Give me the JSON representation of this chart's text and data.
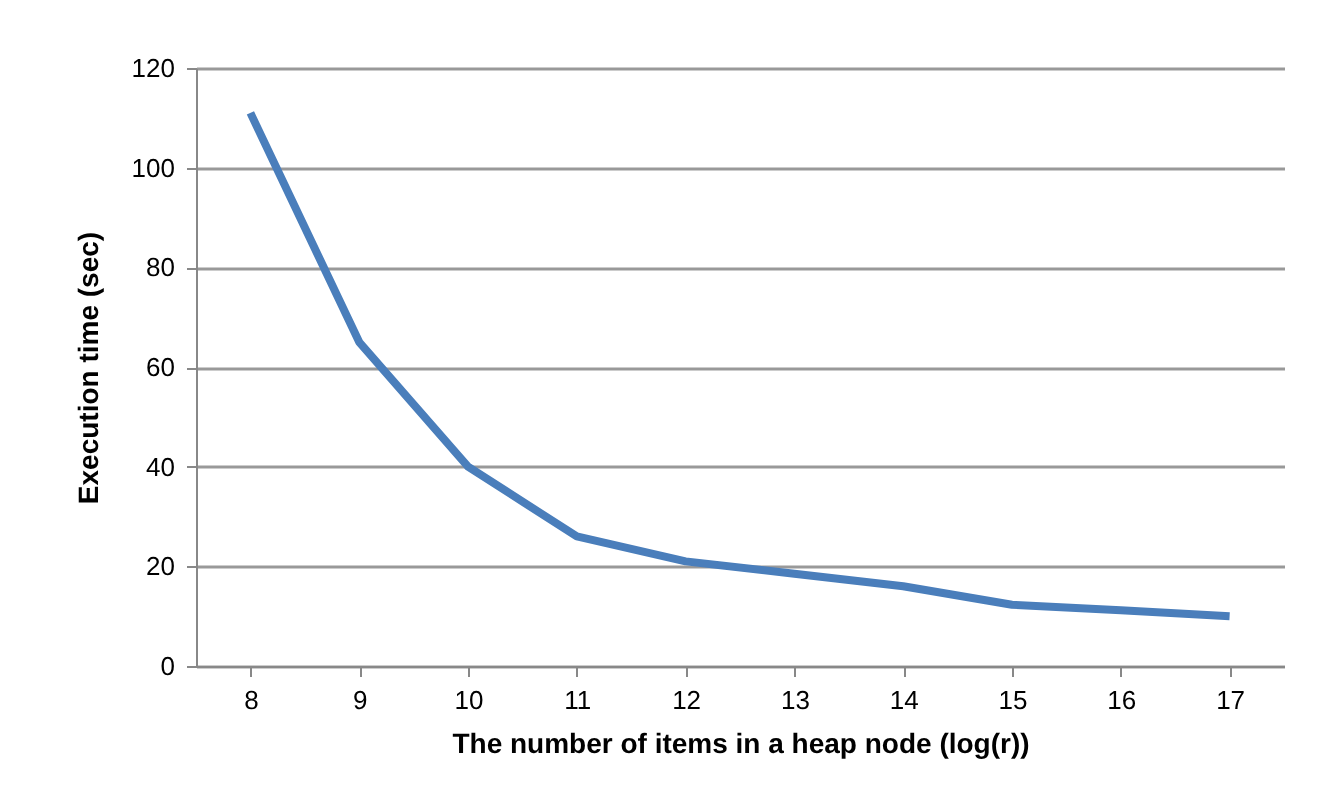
{
  "chart_data": {
    "type": "line",
    "xlabel": "The number of items in a heap node (log(r))",
    "ylabel": "Execution time (sec)",
    "categories": [
      "8",
      "9",
      "10",
      "11",
      "12",
      "13",
      "14",
      "15",
      "16",
      "17"
    ],
    "series": [
      {
        "color": "#4a7ebb",
        "values": [
          111,
          65,
          40,
          26,
          21,
          18.5,
          16,
          12.3,
          11.2,
          10
        ]
      }
    ],
    "ylim": [
      0,
      120
    ],
    "yticks": [
      0,
      20,
      40,
      60,
      80,
      100,
      120
    ],
    "grid": "y",
    "legend": false,
    "marker": "none",
    "line_style": "solid"
  }
}
